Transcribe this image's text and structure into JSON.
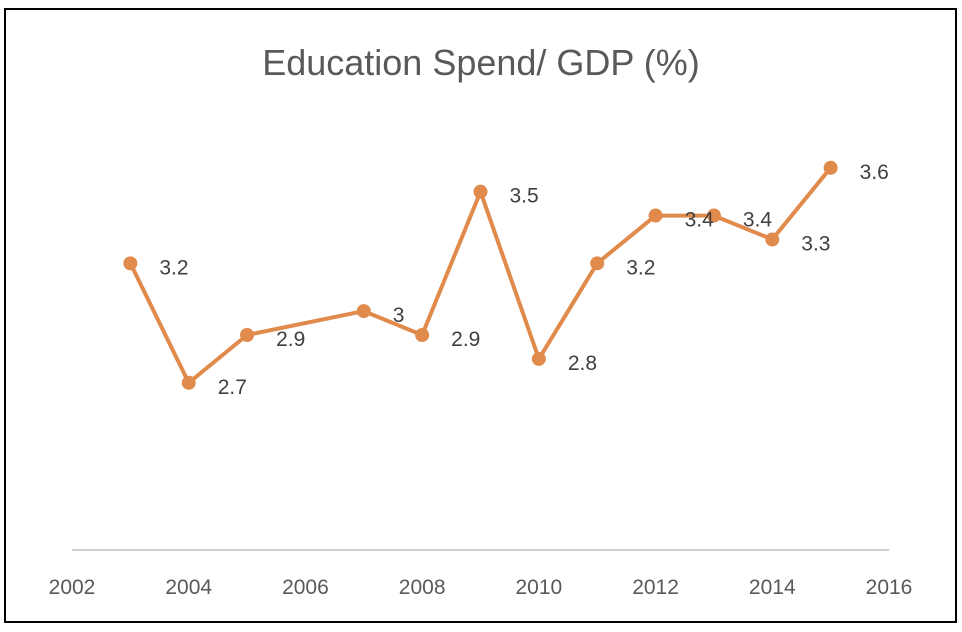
{
  "chart_data": {
    "type": "line",
    "title": "Education Spend/ GDP (%)",
    "xlabel": "",
    "ylabel": "",
    "x": [
      2003,
      2004,
      2005,
      2007,
      2008,
      2009,
      2010,
      2011,
      2012,
      2013,
      2014,
      2015
    ],
    "series": [
      {
        "name": "Education Spend/ GDP (%)",
        "values": [
          3.2,
          2.7,
          2.9,
          3,
          2.9,
          3.5,
          2.8,
          3.2,
          3.4,
          3.4,
          3.3,
          3.6
        ],
        "data_labels": [
          "3.2",
          "2.7",
          "2.9",
          "3",
          "2.9",
          "3.5",
          "2.8",
          "3.2",
          "3.4",
          "3.4",
          "3.3",
          "3.6"
        ],
        "color": "#E08A4B"
      }
    ],
    "xlim": [
      2002,
      2016
    ],
    "ylim": [
      2.0,
      3.8
    ],
    "x_ticks": [
      "2002",
      "2004",
      "2006",
      "2008",
      "2010",
      "2012",
      "2014",
      "2016"
    ],
    "y_ticks_visible": false,
    "grid": false,
    "legend": "none",
    "axis_color": "#BFBFBF"
  }
}
